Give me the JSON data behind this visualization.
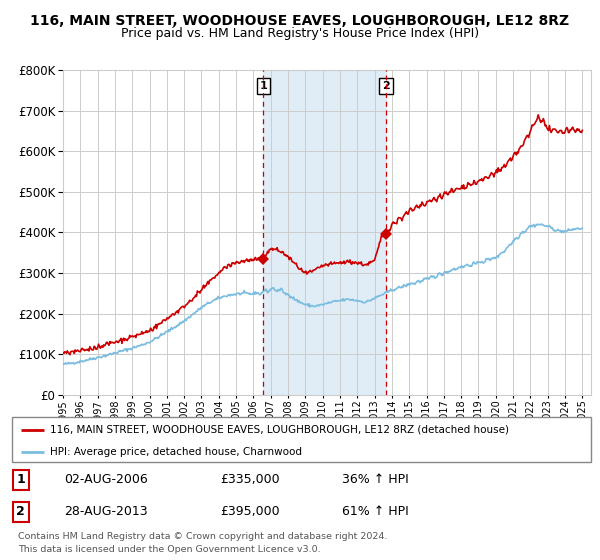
{
  "title": "116, MAIN STREET, WOODHOUSE EAVES, LOUGHBOROUGH, LE12 8RZ",
  "subtitle": "Price paid vs. HM Land Registry's House Price Index (HPI)",
  "legend_line1": "116, MAIN STREET, WOODHOUSE EAVES, LOUGHBOROUGH, LE12 8RZ (detached house)",
  "legend_line2": "HPI: Average price, detached house, Charnwood",
  "footnote": "Contains HM Land Registry data © Crown copyright and database right 2024.\nThis data is licensed under the Open Government Licence v3.0.",
  "sale1_label": "1",
  "sale1_date": "02-AUG-2006",
  "sale1_price": "£335,000",
  "sale1_hpi": "36% ↑ HPI",
  "sale2_label": "2",
  "sale2_date": "28-AUG-2013",
  "sale2_price": "£395,000",
  "sale2_hpi": "61% ↑ HPI",
  "sale1_year": 2006.58,
  "sale1_value": 335000,
  "sale2_year": 2013.65,
  "sale2_value": 395000,
  "ylim": [
    0,
    800000
  ],
  "xlim_start": 1995,
  "xlim_end": 2025.5,
  "hpi_color": "#7bbde0",
  "price_color": "#cc0000",
  "vline_color": "#cc0000",
  "bg_shade_color": "#d6e8f5",
  "grid_color": "#cccccc",
  "title_fontsize": 10,
  "subtitle_fontsize": 9,
  "background_color": "#ffffff",
  "hpi_years": [
    1995,
    1995.5,
    1996,
    1996.5,
    1997,
    1997.5,
    1998,
    1998.5,
    1999,
    1999.5,
    2000,
    2000.5,
    2001,
    2001.5,
    2002,
    2002.5,
    2003,
    2003.5,
    2004,
    2004.5,
    2005,
    2005.5,
    2006,
    2006.5,
    2007,
    2007.5,
    2008,
    2008.5,
    2009,
    2009.5,
    2010,
    2010.5,
    2011,
    2011.5,
    2012,
    2012.5,
    2013,
    2013.5,
    2014,
    2014.5,
    2015,
    2015.5,
    2016,
    2016.5,
    2017,
    2017.5,
    2018,
    2018.5,
    2019,
    2019.5,
    2020,
    2020.5,
    2021,
    2021.5,
    2022,
    2022.5,
    2023,
    2023.5,
    2024,
    2024.5,
    2025
  ],
  "hpi_vals": [
    75000,
    78000,
    82000,
    87000,
    92000,
    97000,
    103000,
    109000,
    115000,
    122000,
    130000,
    142000,
    155000,
    168000,
    182000,
    198000,
    215000,
    228000,
    238000,
    245000,
    248000,
    250000,
    248000,
    252000,
    260000,
    258000,
    248000,
    232000,
    222000,
    218000,
    222000,
    228000,
    232000,
    235000,
    232000,
    228000,
    238000,
    248000,
    258000,
    265000,
    272000,
    278000,
    285000,
    292000,
    300000,
    308000,
    315000,
    320000,
    325000,
    332000,
    338000,
    355000,
    378000,
    398000,
    415000,
    420000,
    415000,
    405000,
    402000,
    408000,
    410000
  ],
  "price_years": [
    1995,
    1995.5,
    1996,
    1996.5,
    1997,
    1997.5,
    1998,
    1998.5,
    1999,
    1999.5,
    2000,
    2000.5,
    2001,
    2001.5,
    2002,
    2002.5,
    2003,
    2003.5,
    2004,
    2004.5,
    2005,
    2005.5,
    2006,
    2006.42,
    2006.58,
    2007,
    2007.5,
    2008,
    2008.5,
    2009,
    2009.5,
    2010,
    2010.5,
    2011,
    2011.5,
    2012,
    2012.5,
    2013,
    2013.42,
    2013.65,
    2014,
    2014.5,
    2015,
    2015.5,
    2016,
    2016.5,
    2017,
    2017.5,
    2018,
    2018.5,
    2019,
    2019.5,
    2020,
    2020.5,
    2021,
    2021.5,
    2022,
    2022.25,
    2022.5,
    2022.75,
    2023,
    2023.5,
    2024,
    2024.5,
    2025
  ],
  "price_vals": [
    102000,
    105000,
    108000,
    112000,
    118000,
    124000,
    130000,
    136000,
    143000,
    150000,
    158000,
    172000,
    188000,
    202000,
    218000,
    238000,
    258000,
    280000,
    300000,
    318000,
    325000,
    330000,
    332000,
    334000,
    335000,
    360000,
    355000,
    340000,
    318000,
    298000,
    305000,
    318000,
    322000,
    325000,
    328000,
    325000,
    320000,
    330000,
    392000,
    395000,
    418000,
    435000,
    452000,
    462000,
    472000,
    482000,
    492000,
    502000,
    510000,
    518000,
    525000,
    535000,
    548000,
    562000,
    585000,
    612000,
    648000,
    672000,
    685000,
    672000,
    655000,
    648000,
    650000,
    655000,
    648000
  ]
}
